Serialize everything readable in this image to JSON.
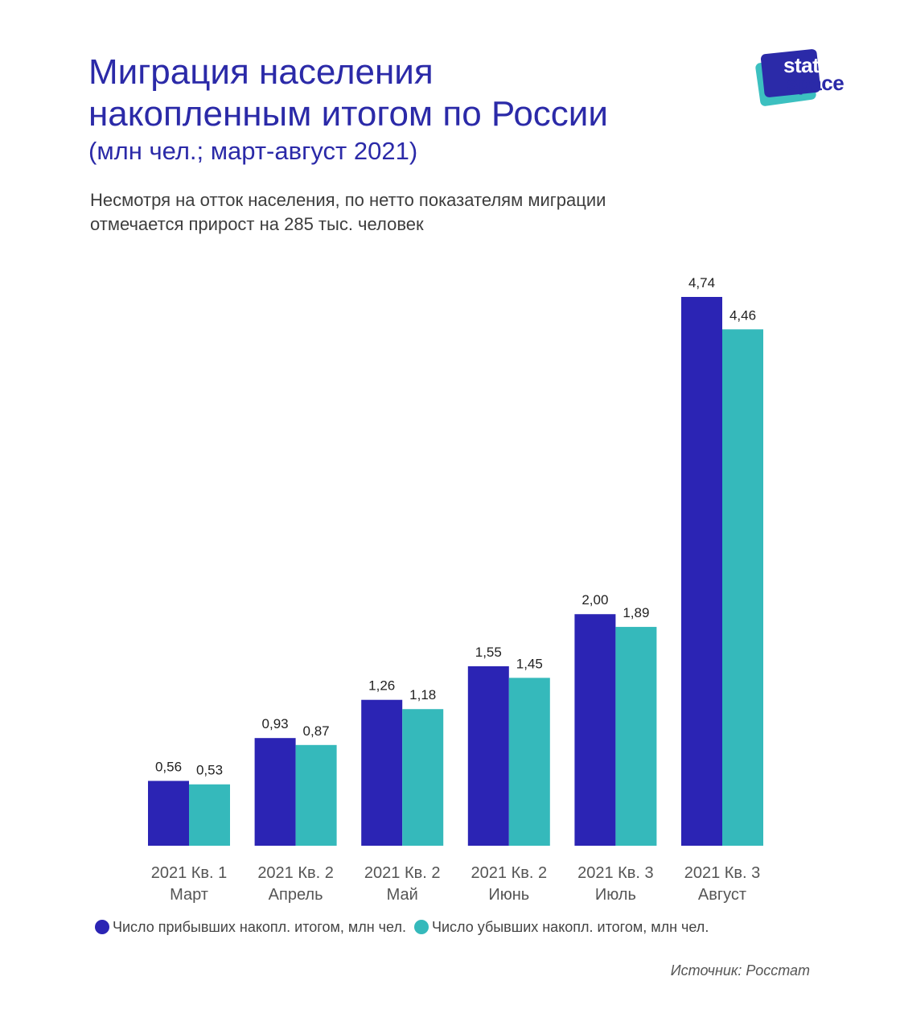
{
  "header": {
    "title_line1": "Миграция населения",
    "title_line2": "накопленным итогом по России",
    "units": "(млн чел.; март-август 2021)",
    "description_line1": "Несмотря на отток населения, по нетто показателям миграции",
    "description_line2": "отмечается прирост на 285 тыс. человек"
  },
  "logo": {
    "text_line1": "stat",
    "text_line2": "space"
  },
  "colors": {
    "arrivals": "#2b24b4",
    "departures": "#35b9bb",
    "title": "#2b2aa8"
  },
  "chart_data": {
    "type": "bar",
    "categories": [
      [
        "2021 Кв. 1",
        "Март"
      ],
      [
        "2021 Кв. 2",
        "Апрель"
      ],
      [
        "2021 Кв. 2",
        "Май"
      ],
      [
        "2021 Кв. 2",
        "Июнь"
      ],
      [
        "2021 Кв. 3",
        "Июль"
      ],
      [
        "2021 Кв. 3",
        "Август"
      ]
    ],
    "series": [
      {
        "name": "Число прибывших накопл. итогом, млн чел.",
        "values": [
          0.56,
          0.93,
          1.26,
          1.55,
          2.0,
          4.74
        ],
        "labels": [
          "0,56",
          "0,93",
          "1,26",
          "1,55",
          "2,00",
          "4,74"
        ]
      },
      {
        "name": "Число убывших накопл. итогом, млн чел.",
        "values": [
          0.53,
          0.87,
          1.18,
          1.45,
          1.89,
          4.46
        ],
        "labels": [
          "0,53",
          "0,87",
          "1,18",
          "1,45",
          "1,89",
          "4,46"
        ]
      }
    ],
    "ylim": [
      0,
      4.74
    ],
    "grid": false,
    "legend_placement": "bottom"
  },
  "footer": {
    "source": "Источник: Росстат"
  }
}
